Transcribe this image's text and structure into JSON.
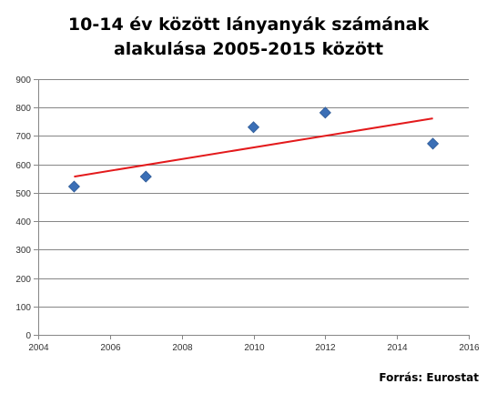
{
  "title_lines": [
    "10-14 év között lányanyák számának",
    "alakulása 2005-2015 között"
  ],
  "source": "Forrás: Eurostat",
  "colors": {
    "marker": "#3B6FB6",
    "trendline": "#E31A1C",
    "grid": "#868686",
    "axis": "#868686"
  },
  "chart_data": {
    "type": "scatter",
    "title": "10-14 év között lányanyák számának alakulása 2005-2015 között",
    "xlabel": "",
    "ylabel": "",
    "xlim": [
      2004,
      2016
    ],
    "ylim": [
      0,
      900
    ],
    "xticks": [
      2004,
      2006,
      2008,
      2010,
      2012,
      2014,
      2016
    ],
    "yticks": [
      0,
      100,
      200,
      300,
      400,
      500,
      600,
      700,
      800,
      900
    ],
    "grid": true,
    "legend": "none",
    "series": [
      {
        "x": [
          2005,
          2007,
          2010,
          2012,
          2015
        ],
        "y": [
          522,
          557,
          731,
          782,
          673
        ]
      }
    ],
    "trendline": {
      "type": "linear",
      "x": [
        2005,
        2015
      ],
      "y": [
        557,
        762
      ]
    }
  }
}
